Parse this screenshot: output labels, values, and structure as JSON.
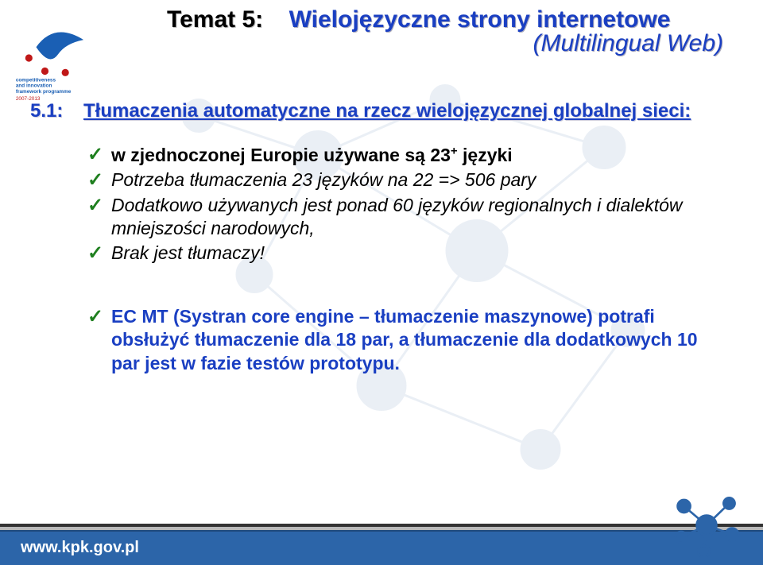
{
  "colors": {
    "title_blue": "#1a3fc2",
    "check_green": "#1e7f1e",
    "footer_bg": "#2c65a9",
    "footer_text": "#ffffff",
    "watermark": "#5a7fb5",
    "logo_blue": "#1a5fb4",
    "logo_red": "#c01818",
    "text": "#000000",
    "bg": "#ffffff"
  },
  "typography": {
    "heading_size_pt": 30,
    "section_size_pt": 24,
    "body_size_pt": 23,
    "footer_size_pt": 20,
    "font_family": "Arial"
  },
  "header": {
    "temat_label": "Temat 5:",
    "title": "Wielojęzyczne strony internetowe",
    "subtitle": "(Multilingual Web)"
  },
  "section": {
    "num": "5.1:",
    "title": "Tłumaczenia automatyczne na rzecz wielojęzycznej globalnej sieci:"
  },
  "bullets_group1": [
    {
      "pre": "w zjednoczonej Europie używane są ",
      "bold": "23",
      "sup": "+",
      "post": " języki",
      "bold_all": true
    },
    {
      "text": "Potrzeba tłumaczenia 23 języków na 22 => 506 pary",
      "italic": true
    },
    {
      "text": "Dodatkowo używanych jest ponad 60 języków regionalnych i dialektów mniejszości narodowych,",
      "italic": true
    },
    {
      "text": "Brak jest tłumaczy!",
      "italic": true
    }
  ],
  "bullets_group2": [
    {
      "text": "EC MT (Systran core engine – tłumaczenie maszynowe) potrafi obsłużyć tłumaczenie dla 18 par, a tłumaczenie dla dodatkowych 10 par jest w fazie testów prototypu.",
      "bold": true,
      "blue": true
    }
  ],
  "footer": {
    "url": "www.kpk.gov.pl"
  },
  "logo_top": {
    "label_line1": "competitiveness",
    "label_line2": "and innovation",
    "label_line3": "framework programme",
    "years": "2007-2013"
  }
}
